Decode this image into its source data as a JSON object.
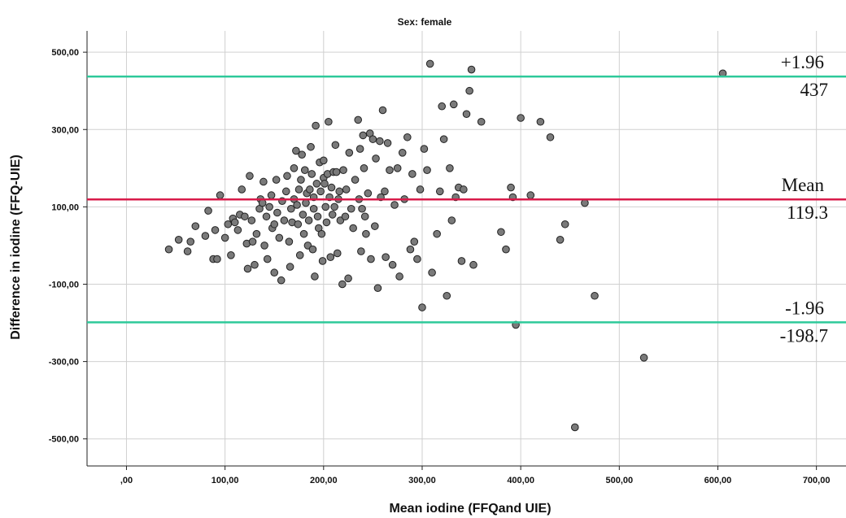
{
  "chart_data": {
    "type": "scatter",
    "title": "Sex: female",
    "xlabel": "Mean iodine (FFQand UIE)",
    "ylabel": "Difference in iodine (FFQ-UIE)",
    "xlim": [
      -40,
      730
    ],
    "ylim": [
      -570,
      555
    ],
    "x_ticks": [
      {
        "value": 0,
        "label": ",00"
      },
      {
        "value": 100,
        "label": "100,00"
      },
      {
        "value": 200,
        "label": "200,00"
      },
      {
        "value": 300,
        "label": "300,00"
      },
      {
        "value": 400,
        "label": "400,00"
      },
      {
        "value": 500,
        "label": "500,00"
      },
      {
        "value": 600,
        "label": "600,00"
      },
      {
        "value": 700,
        "label": "700,00"
      }
    ],
    "y_ticks": [
      {
        "value": 500,
        "label": "500,00"
      },
      {
        "value": 300,
        "label": "300,00"
      },
      {
        "value": 100,
        "label": "100,00"
      },
      {
        "value": -100,
        "label": "-100,00"
      },
      {
        "value": -300,
        "label": "-300,00"
      },
      {
        "value": -500,
        "label": "-500,00"
      }
    ],
    "grid": true,
    "point_color": "#7a7a7a",
    "reference_lines": [
      {
        "value": 437,
        "label_top": "+1.96",
        "label_bottom": "437",
        "color": "#2ec99a"
      },
      {
        "value": 119.3,
        "label_top": "Mean",
        "label_bottom": "119.3",
        "color": "#d81b4a"
      },
      {
        "value": -198.7,
        "label_top": "-1.96",
        "label_bottom": "-198.7",
        "color": "#2ec99a"
      }
    ],
    "points": [
      [
        43,
        -10
      ],
      [
        53,
        15
      ],
      [
        62,
        -15
      ],
      [
        65,
        10
      ],
      [
        70,
        50
      ],
      [
        80,
        25
      ],
      [
        83,
        90
      ],
      [
        88,
        -35
      ],
      [
        90,
        40
      ],
      [
        92,
        -35
      ],
      [
        95,
        130
      ],
      [
        100,
        20
      ],
      [
        103,
        55
      ],
      [
        106,
        -25
      ],
      [
        108,
        70
      ],
      [
        110,
        60
      ],
      [
        113,
        40
      ],
      [
        115,
        80
      ],
      [
        117,
        145
      ],
      [
        120,
        75
      ],
      [
        122,
        5
      ],
      [
        123,
        -60
      ],
      [
        125,
        180
      ],
      [
        127,
        65
      ],
      [
        128,
        10
      ],
      [
        130,
        -50
      ],
      [
        132,
        30
      ],
      [
        135,
        95
      ],
      [
        136,
        120
      ],
      [
        138,
        110
      ],
      [
        139,
        165
      ],
      [
        140,
        0
      ],
      [
        142,
        75
      ],
      [
        143,
        -35
      ],
      [
        145,
        100
      ],
      [
        147,
        130
      ],
      [
        148,
        45
      ],
      [
        150,
        55
      ],
      [
        150,
        -70
      ],
      [
        152,
        170
      ],
      [
        153,
        85
      ],
      [
        155,
        20
      ],
      [
        157,
        -90
      ],
      [
        158,
        115
      ],
      [
        160,
        65
      ],
      [
        162,
        140
      ],
      [
        163,
        180
      ],
      [
        165,
        10
      ],
      [
        166,
        -55
      ],
      [
        167,
        95
      ],
      [
        168,
        60
      ],
      [
        170,
        120
      ],
      [
        170,
        200
      ],
      [
        172,
        245
      ],
      [
        173,
        105
      ],
      [
        174,
        55
      ],
      [
        175,
        145
      ],
      [
        176,
        -25
      ],
      [
        177,
        170
      ],
      [
        178,
        235
      ],
      [
        179,
        80
      ],
      [
        180,
        30
      ],
      [
        181,
        195
      ],
      [
        182,
        110
      ],
      [
        183,
        135
      ],
      [
        184,
        0
      ],
      [
        185,
        65
      ],
      [
        186,
        145
      ],
      [
        187,
        255
      ],
      [
        188,
        185
      ],
      [
        189,
        -10
      ],
      [
        190,
        95
      ],
      [
        190,
        125
      ],
      [
        191,
        -80
      ],
      [
        192,
        310
      ],
      [
        193,
        160
      ],
      [
        194,
        75
      ],
      [
        195,
        45
      ],
      [
        196,
        215
      ],
      [
        197,
        140
      ],
      [
        198,
        30
      ],
      [
        199,
        -40
      ],
      [
        200,
        175
      ],
      [
        200,
        220
      ],
      [
        201,
        160
      ],
      [
        202,
        100
      ],
      [
        203,
        60
      ],
      [
        204,
        185
      ],
      [
        205,
        320
      ],
      [
        206,
        125
      ],
      [
        207,
        -30
      ],
      [
        208,
        150
      ],
      [
        209,
        80
      ],
      [
        210,
        190
      ],
      [
        211,
        100
      ],
      [
        212,
        260
      ],
      [
        213,
        190
      ],
      [
        214,
        -20
      ],
      [
        215,
        120
      ],
      [
        216,
        140
      ],
      [
        217,
        65
      ],
      [
        219,
        -100
      ],
      [
        220,
        195
      ],
      [
        222,
        75
      ],
      [
        223,
        145
      ],
      [
        225,
        -85
      ],
      [
        226,
        240
      ],
      [
        228,
        95
      ],
      [
        230,
        45
      ],
      [
        232,
        170
      ],
      [
        235,
        325
      ],
      [
        236,
        120
      ],
      [
        237,
        250
      ],
      [
        238,
        -15
      ],
      [
        239,
        95
      ],
      [
        240,
        285
      ],
      [
        241,
        200
      ],
      [
        242,
        75
      ],
      [
        243,
        30
      ],
      [
        245,
        135
      ],
      [
        247,
        290
      ],
      [
        248,
        -35
      ],
      [
        250,
        275
      ],
      [
        252,
        50
      ],
      [
        253,
        225
      ],
      [
        255,
        -110
      ],
      [
        257,
        270
      ],
      [
        258,
        125
      ],
      [
        260,
        350
      ],
      [
        262,
        140
      ],
      [
        263,
        -30
      ],
      [
        265,
        265
      ],
      [
        267,
        195
      ],
      [
        270,
        -50
      ],
      [
        272,
        105
      ],
      [
        275,
        200
      ],
      [
        277,
        -80
      ],
      [
        280,
        240
      ],
      [
        282,
        120
      ],
      [
        285,
        280
      ],
      [
        288,
        -10
      ],
      [
        290,
        185
      ],
      [
        292,
        10
      ],
      [
        295,
        -35
      ],
      [
        298,
        145
      ],
      [
        300,
        -160
      ],
      [
        302,
        250
      ],
      [
        305,
        195
      ],
      [
        308,
        470
      ],
      [
        310,
        -70
      ],
      [
        315,
        30
      ],
      [
        318,
        140
      ],
      [
        320,
        360
      ],
      [
        322,
        275
      ],
      [
        325,
        -130
      ],
      [
        328,
        200
      ],
      [
        330,
        65
      ],
      [
        332,
        365
      ],
      [
        334,
        125
      ],
      [
        337,
        150
      ],
      [
        340,
        -40
      ],
      [
        342,
        145
      ],
      [
        345,
        340
      ],
      [
        348,
        400
      ],
      [
        350,
        455
      ],
      [
        352,
        -50
      ],
      [
        360,
        320
      ],
      [
        380,
        35
      ],
      [
        385,
        -10
      ],
      [
        390,
        150
      ],
      [
        392,
        125
      ],
      [
        395,
        -205
      ],
      [
        400,
        330
      ],
      [
        410,
        130
      ],
      [
        420,
        320
      ],
      [
        430,
        280
      ],
      [
        440,
        15
      ],
      [
        445,
        55
      ],
      [
        465,
        110
      ],
      [
        475,
        -130
      ],
      [
        455,
        -470
      ],
      [
        525,
        -290
      ],
      [
        605,
        445
      ]
    ]
  }
}
